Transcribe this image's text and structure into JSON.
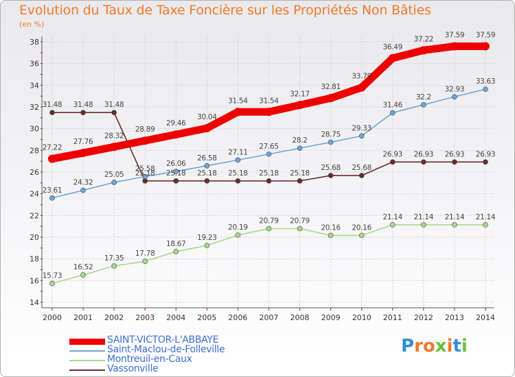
{
  "header": {
    "title": "Evolution du Taux de Taxe Foncière sur les Propriétés Non Bâties",
    "subtitle": "(en %)"
  },
  "logo": {
    "text": "Proxiti",
    "colors": [
      "#2f8fd6",
      "#f07a2a",
      "#f07a2a",
      "#6bbf3a",
      "#f07a2a",
      "#2f8fd6",
      "#6bbf3a"
    ]
  },
  "chart_data": {
    "type": "line",
    "title": "Evolution du Taux de Taxe Foncière sur les Propriétés Non Bâties",
    "ylabel": "(en %)",
    "xlabel": "",
    "x": [
      "2000",
      "2001",
      "2002",
      "2003",
      "2004",
      "2005",
      "2006",
      "2007",
      "2008",
      "2009",
      "2010",
      "2011",
      "2012",
      "2013",
      "2014"
    ],
    "ylim": [
      14,
      38
    ],
    "yticks": [
      "14",
      "16",
      "18",
      "20",
      "22",
      "24",
      "26",
      "28",
      "30",
      "32",
      "34",
      "36",
      "38"
    ],
    "grid": true,
    "legend": "bottom-left",
    "series": [
      {
        "name": "SAINT-VICTOR-L'ABBAYE",
        "color": "#ee0000",
        "values": [
          27.22,
          27.76,
          28.32,
          28.89,
          29.46,
          30.04,
          31.54,
          31.54,
          32.17,
          32.81,
          33.79,
          36.49,
          37.22,
          37.59,
          37.59
        ],
        "labels": [
          "27.22",
          "27.76",
          "28.32",
          "28.89",
          "29.46",
          "30.04",
          "31.54",
          "31.54",
          "32.17",
          "32.81",
          "33.79",
          "36.49",
          "37.22",
          "37.59",
          "37.59"
        ]
      },
      {
        "name": "Saint-Maclou-de-Folleville",
        "color": "#6fa6d6",
        "values": [
          23.61,
          24.32,
          25.05,
          25.58,
          26.06,
          26.58,
          27.11,
          27.65,
          28.2,
          28.75,
          29.33,
          31.46,
          32.2,
          32.93,
          33.63
        ],
        "labels": [
          "23.61",
          "24.32",
          "25.05",
          "25.58",
          "26.06",
          "26.58",
          "27.11",
          "27.65",
          "28.2",
          "28.75",
          "29.33",
          "31.46",
          "32.2",
          "32.93",
          "33.63"
        ]
      },
      {
        "name": "Montreuil-en-Caux",
        "color": "#a8d98a",
        "values": [
          15.73,
          16.52,
          17.35,
          17.78,
          18.67,
          19.23,
          20.19,
          20.79,
          20.79,
          20.16,
          20.16,
          21.14,
          21.14,
          21.14,
          21.14
        ],
        "labels": [
          "15.73",
          "16.52",
          "17.35",
          "17.78",
          "18.67",
          "19.23",
          "20.19",
          "20.79",
          "20.79",
          "20.16",
          "20.16",
          "21.14",
          "21.14",
          "21.14",
          "21.14"
        ]
      },
      {
        "name": "Vassonville",
        "color": "#6b2a2a",
        "values": [
          31.48,
          31.48,
          31.48,
          25.18,
          25.18,
          25.18,
          25.18,
          25.18,
          25.18,
          25.68,
          25.68,
          26.93,
          26.93,
          26.93,
          26.93
        ],
        "labels": [
          "31.48",
          "31.48",
          "31.48",
          "25.18",
          "25.18",
          "25.18",
          "25.18",
          "25.18",
          "25.18",
          "25.68",
          "25.68",
          "26.93",
          "26.93",
          "26.93",
          "26.93"
        ]
      }
    ]
  }
}
